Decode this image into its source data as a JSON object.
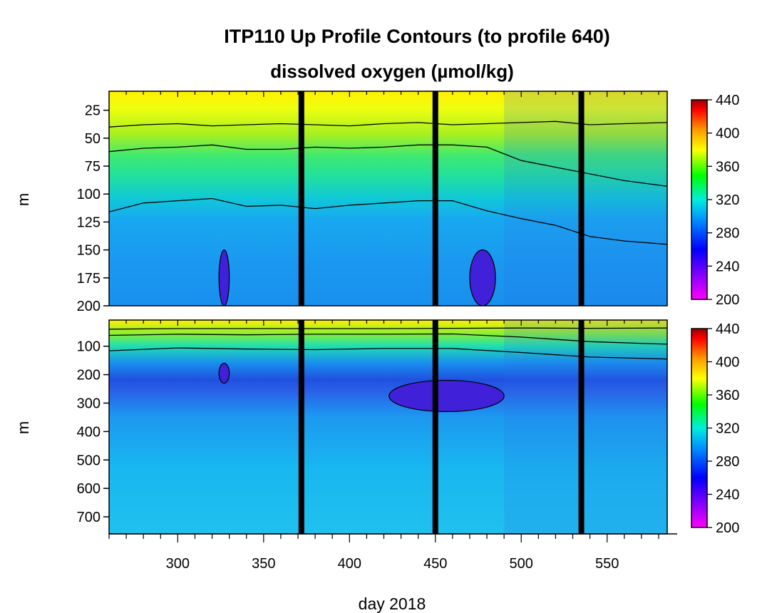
{
  "chart_data": [
    {
      "type": "heatmap",
      "title": "ITP110 Up Profile Contours (to profile 640)",
      "subtitle": "dissolved oxygen (µmol/kg)",
      "xlabel": "day 2018",
      "ylabel": "m",
      "xlim": [
        260,
        585
      ],
      "ylim": [
        200,
        8
      ],
      "x_ticks": [
        300,
        350,
        400,
        450,
        500,
        550
      ],
      "y_ticks": [
        25,
        50,
        75,
        100,
        125,
        150,
        175,
        200
      ],
      "colorbar": {
        "ticks": [
          200,
          240,
          280,
          320,
          360,
          400,
          440
        ],
        "range": [
          200,
          440
        ]
      },
      "contour_levels": [
        280,
        320,
        360
      ],
      "contours": [
        {
          "level": 360,
          "x": [
            260,
            280,
            300,
            320,
            340,
            360,
            380,
            400,
            420,
            440,
            460,
            480,
            500,
            520,
            540,
            560,
            585
          ],
          "y": [
            40,
            38,
            37,
            39,
            38,
            37,
            38,
            39,
            37,
            36,
            38,
            37,
            36,
            35,
            38,
            37,
            36
          ]
        },
        {
          "level": 320,
          "x": [
            260,
            280,
            300,
            320,
            340,
            360,
            380,
            400,
            420,
            440,
            460,
            480,
            500,
            520,
            540,
            560,
            585
          ],
          "y": [
            62,
            59,
            58,
            56,
            60,
            60,
            58,
            59,
            58,
            56,
            56,
            58,
            70,
            76,
            82,
            88,
            93
          ]
        },
        {
          "level": 280,
          "x": [
            260,
            280,
            300,
            320,
            340,
            360,
            380,
            400,
            420,
            440,
            460,
            480,
            500,
            520,
            540,
            560,
            585
          ],
          "y": [
            116,
            108,
            106,
            104,
            111,
            110,
            113,
            110,
            108,
            106,
            106,
            115,
            122,
            128,
            138,
            142,
            145
          ]
        }
      ],
      "dark_columns": [
        372,
        450,
        535
      ],
      "low_oxygen_patches": [
        {
          "x": [
            324,
            330
          ],
          "y": [
            150,
            200
          ]
        },
        {
          "x": [
            470,
            485
          ],
          "y": [
            150,
            200
          ]
        }
      ]
    },
    {
      "type": "heatmap",
      "xlabel": "day 2018",
      "ylabel": "m",
      "xlim": [
        260,
        585
      ],
      "ylim": [
        760,
        8
      ],
      "x_ticks": [
        300,
        350,
        400,
        450,
        500,
        550
      ],
      "y_ticks": [
        100,
        200,
        300,
        400,
        500,
        600,
        700
      ],
      "colorbar": {
        "ticks": [
          200,
          240,
          280,
          320,
          360,
          400,
          440
        ],
        "range": [
          200,
          440
        ]
      },
      "contour_levels": [
        280,
        320,
        360
      ],
      "contours": [
        {
          "level": 360,
          "x": [
            260,
            300,
            340,
            380,
            420,
            460,
            500,
            540,
            585
          ],
          "y": [
            40,
            38,
            38,
            38,
            38,
            37,
            36,
            37,
            36
          ]
        },
        {
          "level": 320,
          "x": [
            260,
            300,
            340,
            380,
            420,
            460,
            500,
            540,
            585
          ],
          "y": [
            62,
            58,
            60,
            58,
            58,
            57,
            68,
            84,
            93
          ]
        },
        {
          "level": 280,
          "x": [
            260,
            300,
            340,
            380,
            420,
            460,
            500,
            540,
            585
          ],
          "y": [
            116,
            106,
            110,
            112,
            108,
            108,
            122,
            138,
            145
          ]
        }
      ],
      "minimum_layer": {
        "depth_center": 250,
        "value": 245
      },
      "dark_columns": [
        372,
        450,
        535
      ],
      "low_oxygen_patches": [
        {
          "x": [
            423,
            490
          ],
          "y": [
            220,
            330
          ]
        },
        {
          "x": [
            324,
            330
          ],
          "y": [
            160,
            230
          ]
        }
      ]
    }
  ]
}
